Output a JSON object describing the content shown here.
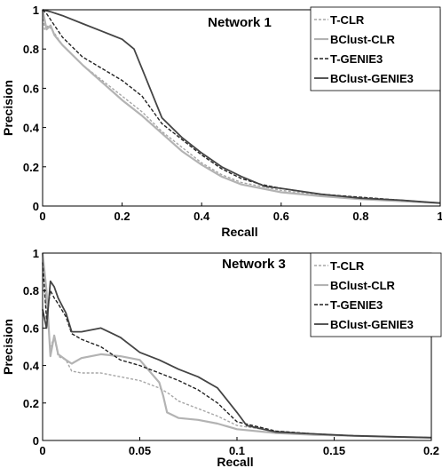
{
  "chart_data": [
    {
      "type": "line",
      "title": "Network 1",
      "xlabel": "Recall",
      "ylabel": "Precision",
      "xlim": [
        0,
        1
      ],
      "ylim": [
        0,
        1
      ],
      "xticks": [
        "0",
        "0.2",
        "0.4",
        "0.6",
        "0.8",
        "1"
      ],
      "yticks": [
        "0",
        "0.2",
        "0.4",
        "0.6",
        "0.8",
        "1"
      ],
      "legend_position": "top-right",
      "series": [
        {
          "name": "T-CLR",
          "color": "#a6a6a6",
          "dash": "3,2",
          "width": 1.4,
          "points": [
            [
              0,
              1.0
            ],
            [
              0.005,
              0.9
            ],
            [
              0.015,
              0.92
            ],
            [
              0.03,
              0.88
            ],
            [
              0.05,
              0.82
            ],
            [
              0.1,
              0.72
            ],
            [
              0.15,
              0.64
            ],
            [
              0.2,
              0.56
            ],
            [
              0.25,
              0.48
            ],
            [
              0.3,
              0.38
            ],
            [
              0.35,
              0.3
            ],
            [
              0.4,
              0.22
            ],
            [
              0.45,
              0.16
            ],
            [
              0.5,
              0.12
            ],
            [
              0.6,
              0.08
            ],
            [
              0.7,
              0.055
            ],
            [
              0.8,
              0.04
            ],
            [
              0.9,
              0.028
            ],
            [
              1.0,
              0.015
            ]
          ]
        },
        {
          "name": "BClust-CLR",
          "color": "#b3b3b3",
          "dash": "",
          "width": 2.2,
          "points": [
            [
              0,
              1.0
            ],
            [
              0.01,
              0.9
            ],
            [
              0.02,
              0.92
            ],
            [
              0.03,
              0.87
            ],
            [
              0.05,
              0.82
            ],
            [
              0.1,
              0.72
            ],
            [
              0.15,
              0.63
            ],
            [
              0.2,
              0.54
            ],
            [
              0.25,
              0.46
            ],
            [
              0.3,
              0.37
            ],
            [
              0.35,
              0.28
            ],
            [
              0.4,
              0.21
            ],
            [
              0.45,
              0.15
            ],
            [
              0.5,
              0.11
            ],
            [
              0.6,
              0.07
            ],
            [
              0.7,
              0.05
            ],
            [
              0.8,
              0.035
            ],
            [
              0.9,
              0.025
            ],
            [
              1.0,
              0.015
            ]
          ]
        },
        {
          "name": "T-GENIE3",
          "color": "#222222",
          "dash": "4,2",
          "width": 1.4,
          "points": [
            [
              0,
              1.0
            ],
            [
              0.01,
              0.98
            ],
            [
              0.03,
              0.92
            ],
            [
              0.05,
              0.86
            ],
            [
              0.1,
              0.76
            ],
            [
              0.15,
              0.7
            ],
            [
              0.2,
              0.64
            ],
            [
              0.25,
              0.56
            ],
            [
              0.3,
              0.42
            ],
            [
              0.35,
              0.34
            ],
            [
              0.4,
              0.26
            ],
            [
              0.45,
              0.19
            ],
            [
              0.5,
              0.14
            ],
            [
              0.55,
              0.11
            ],
            [
              0.6,
              0.09
            ],
            [
              0.7,
              0.06
            ],
            [
              0.8,
              0.045
            ],
            [
              0.9,
              0.03
            ],
            [
              1.0,
              0.015
            ]
          ]
        },
        {
          "name": "BClust-GENIE3",
          "color": "#444444",
          "dash": "",
          "width": 1.8,
          "points": [
            [
              0,
              1.0
            ],
            [
              0.02,
              0.99
            ],
            [
              0.05,
              0.97
            ],
            [
              0.1,
              0.93
            ],
            [
              0.15,
              0.89
            ],
            [
              0.2,
              0.85
            ],
            [
              0.23,
              0.8
            ],
            [
              0.26,
              0.65
            ],
            [
              0.3,
              0.45
            ],
            [
              0.35,
              0.35
            ],
            [
              0.4,
              0.27
            ],
            [
              0.45,
              0.2
            ],
            [
              0.5,
              0.15
            ],
            [
              0.56,
              0.1
            ],
            [
              0.6,
              0.09
            ],
            [
              0.7,
              0.06
            ],
            [
              0.8,
              0.04
            ],
            [
              0.9,
              0.03
            ],
            [
              1.0,
              0.015
            ]
          ]
        }
      ]
    },
    {
      "type": "line",
      "title": "Network 3",
      "xlabel": "Recall",
      "ylabel": "Precision",
      "xlim": [
        0,
        0.2
      ],
      "ylim": [
        0,
        1
      ],
      "xticks": [
        "0",
        "0.05",
        "0.1",
        "0.15",
        "0.2"
      ],
      "yticks": [
        "0",
        "0.2",
        "0.4",
        "0.6",
        "0.8",
        "1"
      ],
      "legend_position": "top-right",
      "series": [
        {
          "name": "T-CLR",
          "color": "#a6a6a6",
          "dash": "3,2",
          "width": 1.4,
          "points": [
            [
              0,
              1.0
            ],
            [
              0.002,
              0.7
            ],
            [
              0.004,
              0.5
            ],
            [
              0.006,
              0.55
            ],
            [
              0.008,
              0.45
            ],
            [
              0.012,
              0.43
            ],
            [
              0.015,
              0.37
            ],
            [
              0.02,
              0.36
            ],
            [
              0.03,
              0.36
            ],
            [
              0.04,
              0.34
            ],
            [
              0.05,
              0.32
            ],
            [
              0.06,
              0.28
            ],
            [
              0.065,
              0.25
            ],
            [
              0.07,
              0.21
            ],
            [
              0.08,
              0.17
            ],
            [
              0.09,
              0.13
            ],
            [
              0.1,
              0.08
            ],
            [
              0.12,
              0.05
            ],
            [
              0.14,
              0.035
            ],
            [
              0.16,
              0.025
            ],
            [
              0.18,
              0.02
            ],
            [
              0.2,
              0.015
            ]
          ]
        },
        {
          "name": "BClust-CLR",
          "color": "#b3b3b3",
          "dash": "",
          "width": 2.2,
          "points": [
            [
              0,
              1.0
            ],
            [
              0.002,
              0.8
            ],
            [
              0.004,
              0.45
            ],
            [
              0.006,
              0.56
            ],
            [
              0.008,
              0.46
            ],
            [
              0.012,
              0.43
            ],
            [
              0.015,
              0.41
            ],
            [
              0.02,
              0.44
            ],
            [
              0.025,
              0.45
            ],
            [
              0.03,
              0.46
            ],
            [
              0.04,
              0.45
            ],
            [
              0.05,
              0.43
            ],
            [
              0.06,
              0.31
            ],
            [
              0.062,
              0.24
            ],
            [
              0.064,
              0.15
            ],
            [
              0.07,
              0.12
            ],
            [
              0.08,
              0.11
            ],
            [
              0.09,
              0.09
            ],
            [
              0.1,
              0.06
            ],
            [
              0.12,
              0.04
            ],
            [
              0.14,
              0.03
            ],
            [
              0.16,
              0.025
            ],
            [
              0.18,
              0.02
            ],
            [
              0.2,
              0.015
            ]
          ]
        },
        {
          "name": "T-GENIE3",
          "color": "#222222",
          "dash": "4,2",
          "width": 1.4,
          "points": [
            [
              0,
              0.95
            ],
            [
              0.002,
              0.65
            ],
            [
              0.004,
              0.8
            ],
            [
              0.006,
              0.76
            ],
            [
              0.008,
              0.73
            ],
            [
              0.012,
              0.66
            ],
            [
              0.015,
              0.57
            ],
            [
              0.02,
              0.54
            ],
            [
              0.03,
              0.5
            ],
            [
              0.04,
              0.43
            ],
            [
              0.05,
              0.4
            ],
            [
              0.06,
              0.36
            ],
            [
              0.07,
              0.32
            ],
            [
              0.08,
              0.27
            ],
            [
              0.09,
              0.2
            ],
            [
              0.1,
              0.1
            ],
            [
              0.12,
              0.05
            ],
            [
              0.14,
              0.035
            ],
            [
              0.16,
              0.025
            ],
            [
              0.18,
              0.02
            ],
            [
              0.2,
              0.015
            ]
          ]
        },
        {
          "name": "BClust-GENIE3",
          "color": "#444444",
          "dash": "",
          "width": 1.8,
          "points": [
            [
              0,
              0.7
            ],
            [
              0.002,
              0.6
            ],
            [
              0.004,
              0.85
            ],
            [
              0.006,
              0.82
            ],
            [
              0.008,
              0.76
            ],
            [
              0.012,
              0.68
            ],
            [
              0.015,
              0.58
            ],
            [
              0.02,
              0.58
            ],
            [
              0.03,
              0.6
            ],
            [
              0.04,
              0.55
            ],
            [
              0.05,
              0.47
            ],
            [
              0.06,
              0.43
            ],
            [
              0.07,
              0.38
            ],
            [
              0.08,
              0.34
            ],
            [
              0.09,
              0.28
            ],
            [
              0.1,
              0.15
            ],
            [
              0.105,
              0.08
            ],
            [
              0.12,
              0.045
            ],
            [
              0.14,
              0.035
            ],
            [
              0.16,
              0.025
            ],
            [
              0.18,
              0.02
            ],
            [
              0.2,
              0.015
            ]
          ]
        }
      ]
    }
  ]
}
